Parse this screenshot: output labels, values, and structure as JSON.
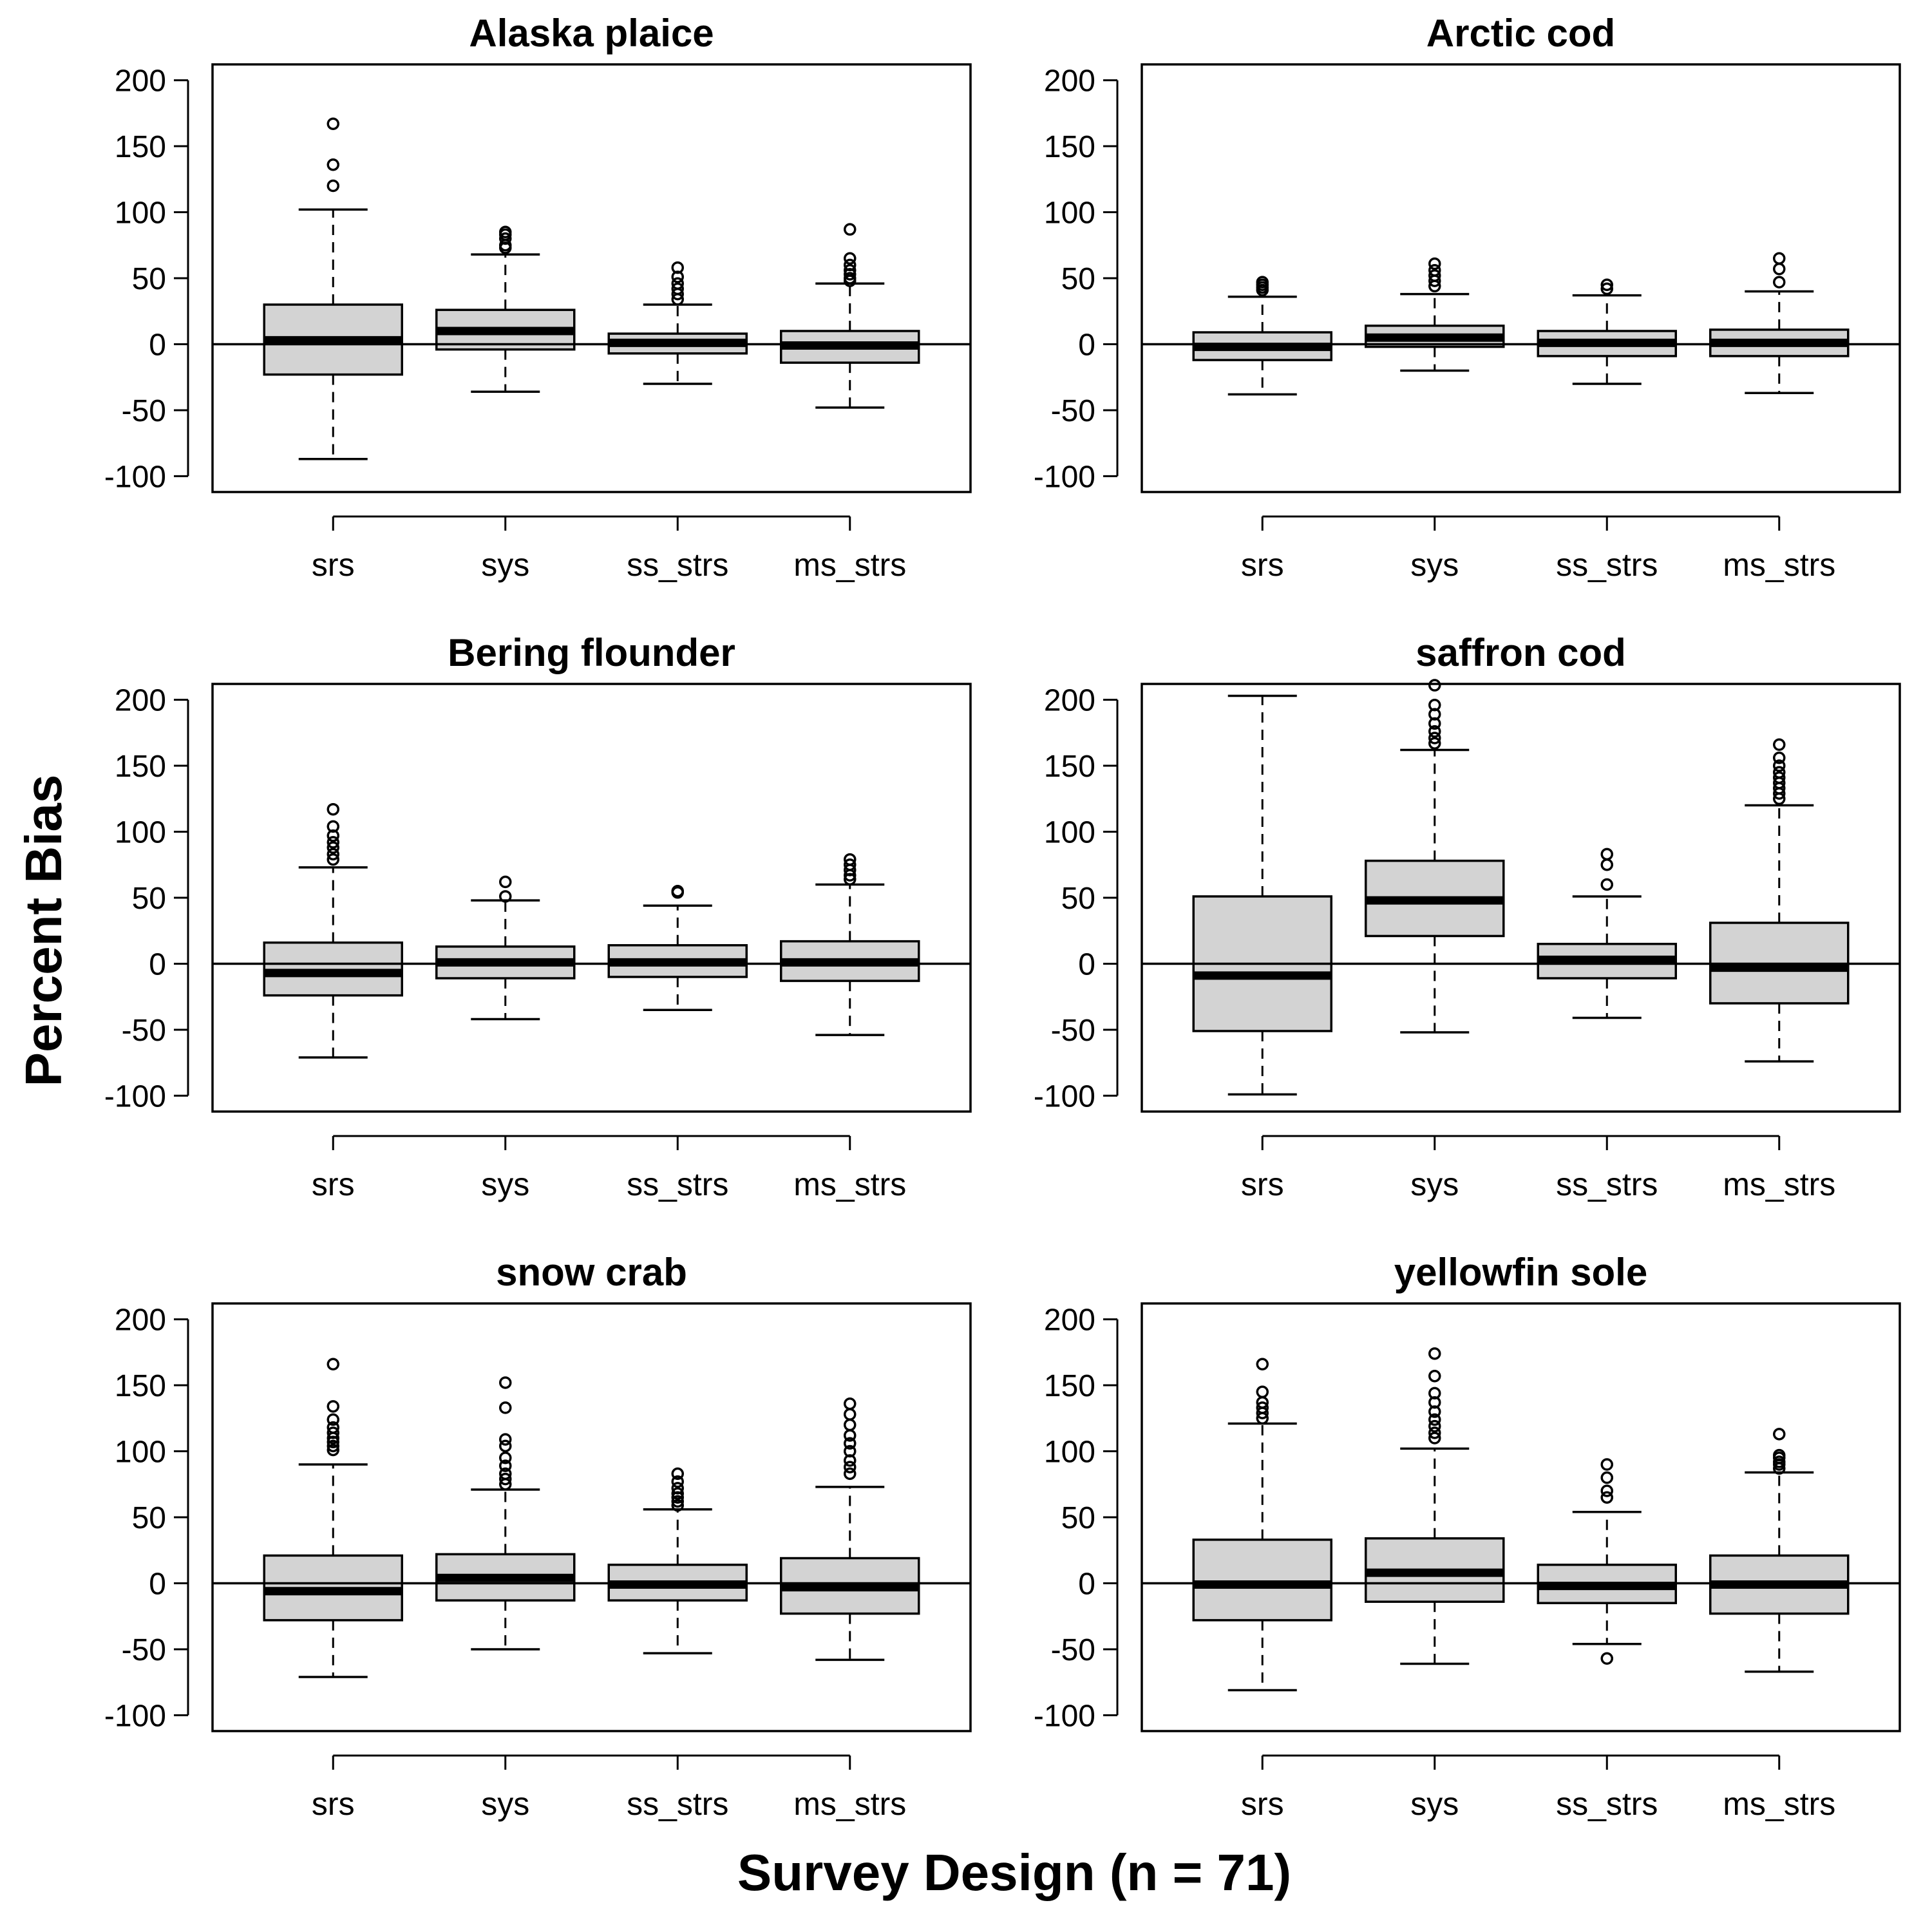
{
  "figure": {
    "ylabel": "Percent Bias",
    "xlabel": "Survey Design (n = 71)",
    "box_fill": "#d3d3d3",
    "line_color": "#000000"
  },
  "chart_data": [
    {
      "type": "box",
      "title": "Alaska plaice",
      "categories": [
        "srs",
        "sys",
        "ss_strs",
        "ms_strs"
      ],
      "ylim": [
        -112,
        212
      ],
      "yticks": [
        -100,
        -50,
        0,
        50,
        100,
        150,
        200
      ],
      "reference_line": 0,
      "boxes": [
        {
          "whisker_low": -87,
          "q1": -23,
          "median": 3,
          "q3": 30,
          "whisker_high": 102,
          "outliers": [
            120,
            136,
            167
          ]
        },
        {
          "whisker_low": -36,
          "q1": -4,
          "median": 10,
          "q3": 26,
          "whisker_high": 68,
          "outliers": [
            73,
            75,
            80,
            83,
            85
          ]
        },
        {
          "whisker_low": -30,
          "q1": -7,
          "median": 1,
          "q3": 8,
          "whisker_high": 30,
          "outliers": [
            34,
            38,
            42,
            46,
            51,
            58
          ]
        },
        {
          "whisker_low": -48,
          "q1": -14,
          "median": -1,
          "q3": 10,
          "whisker_high": 46,
          "outliers": [
            48,
            50,
            53,
            56,
            60,
            65,
            87
          ]
        }
      ]
    },
    {
      "type": "box",
      "title": "Arctic cod",
      "categories": [
        "srs",
        "sys",
        "ss_strs",
        "ms_strs"
      ],
      "ylim": [
        -112,
        212
      ],
      "yticks": [
        -100,
        -50,
        0,
        50,
        100,
        150,
        200
      ],
      "reference_line": 0,
      "boxes": [
        {
          "whisker_low": -38,
          "q1": -12,
          "median": -2,
          "q3": 9,
          "whisker_high": 36,
          "outliers": [
            41,
            43,
            45,
            47
          ]
        },
        {
          "whisker_low": -20,
          "q1": -2,
          "median": 5,
          "q3": 14,
          "whisker_high": 38,
          "outliers": [
            44,
            48,
            52,
            56,
            61
          ]
        },
        {
          "whisker_low": -30,
          "q1": -9,
          "median": 1,
          "q3": 10,
          "whisker_high": 37,
          "outliers": [
            42,
            45
          ]
        },
        {
          "whisker_low": -37,
          "q1": -9,
          "median": 1,
          "q3": 11,
          "whisker_high": 40,
          "outliers": [
            47,
            57,
            65
          ]
        }
      ]
    },
    {
      "type": "box",
      "title": "Bering flounder",
      "categories": [
        "srs",
        "sys",
        "ss_strs",
        "ms_strs"
      ],
      "ylim": [
        -112,
        212
      ],
      "yticks": [
        -100,
        -50,
        0,
        50,
        100,
        150,
        200
      ],
      "reference_line": 0,
      "boxes": [
        {
          "whisker_low": -71,
          "q1": -24,
          "median": -7,
          "q3": 16,
          "whisker_high": 73,
          "outliers": [
            79,
            83,
            88,
            92,
            97,
            104,
            117
          ]
        },
        {
          "whisker_low": -42,
          "q1": -11,
          "median": 1,
          "q3": 13,
          "whisker_high": 48,
          "outliers": [
            51,
            62
          ]
        },
        {
          "whisker_low": -35,
          "q1": -10,
          "median": 1,
          "q3": 14,
          "whisker_high": 44,
          "outliers": [
            54,
            55
          ]
        },
        {
          "whisker_low": -54,
          "q1": -13,
          "median": 1,
          "q3": 17,
          "whisker_high": 60,
          "outliers": [
            64,
            67,
            71,
            75,
            79
          ]
        }
      ]
    },
    {
      "type": "box",
      "title": "saffron cod",
      "categories": [
        "srs",
        "sys",
        "ss_strs",
        "ms_strs"
      ],
      "ylim": [
        -112,
        212
      ],
      "yticks": [
        -100,
        -50,
        0,
        50,
        100,
        150,
        200
      ],
      "reference_line": 0,
      "boxes": [
        {
          "whisker_low": -99,
          "q1": -51,
          "median": -9,
          "q3": 51,
          "whisker_high": 203,
          "outliers": []
        },
        {
          "whisker_low": -52,
          "q1": 21,
          "median": 48,
          "q3": 78,
          "whisker_high": 162,
          "outliers": [
            167,
            171,
            176,
            182,
            189,
            196,
            211
          ]
        },
        {
          "whisker_low": -41,
          "q1": -11,
          "median": 3,
          "q3": 15,
          "whisker_high": 51,
          "outliers": [
            60,
            75,
            83
          ]
        },
        {
          "whisker_low": -74,
          "q1": -30,
          "median": -3,
          "q3": 31,
          "whisker_high": 120,
          "outliers": [
            125,
            129,
            133,
            137,
            141,
            145,
            150,
            156,
            166
          ]
        }
      ]
    },
    {
      "type": "box",
      "title": "snow crab",
      "categories": [
        "srs",
        "sys",
        "ss_strs",
        "ms_strs"
      ],
      "ylim": [
        -112,
        212
      ],
      "yticks": [
        -100,
        -50,
        0,
        50,
        100,
        150,
        200
      ],
      "reference_line": 0,
      "boxes": [
        {
          "whisker_low": -71,
          "q1": -28,
          "median": -6,
          "q3": 21,
          "whisker_high": 90,
          "outliers": [
            101,
            104,
            107,
            110,
            114,
            118,
            124,
            134,
            166
          ]
        },
        {
          "whisker_low": -50,
          "q1": -13,
          "median": 4,
          "q3": 22,
          "whisker_high": 71,
          "outliers": [
            75,
            79,
            83,
            89,
            95,
            104,
            109,
            133,
            152
          ]
        },
        {
          "whisker_low": -53,
          "q1": -13,
          "median": -1,
          "q3": 14,
          "whisker_high": 56,
          "outliers": [
            59,
            62,
            65,
            68,
            72,
            77,
            83
          ]
        },
        {
          "whisker_low": -58,
          "q1": -23,
          "median": -3,
          "q3": 19,
          "whisker_high": 73,
          "outliers": [
            83,
            88,
            93,
            100,
            106,
            112,
            120,
            128,
            136
          ]
        }
      ]
    },
    {
      "type": "box",
      "title": "yellowfin sole",
      "categories": [
        "srs",
        "sys",
        "ss_strs",
        "ms_strs"
      ],
      "ylim": [
        -112,
        212
      ],
      "yticks": [
        -100,
        -50,
        0,
        50,
        100,
        150,
        200
      ],
      "reference_line": 0,
      "boxes": [
        {
          "whisker_low": -81,
          "q1": -28,
          "median": -1,
          "q3": 33,
          "whisker_high": 121,
          "outliers": [
            125,
            129,
            133,
            137,
            145,
            166
          ]
        },
        {
          "whisker_low": -61,
          "q1": -14,
          "median": 8,
          "q3": 34,
          "whisker_high": 102,
          "outliers": [
            110,
            114,
            119,
            124,
            130,
            137,
            144,
            157,
            174
          ]
        },
        {
          "whisker_low": -46,
          "q1": -15,
          "median": -2,
          "q3": 14,
          "whisker_high": 54,
          "outliers": [
            65,
            70,
            80,
            90,
            -57
          ]
        },
        {
          "whisker_low": -67,
          "q1": -23,
          "median": -1,
          "q3": 21,
          "whisker_high": 84,
          "outliers": [
            87,
            90,
            92,
            95,
            97,
            113
          ]
        }
      ]
    }
  ]
}
